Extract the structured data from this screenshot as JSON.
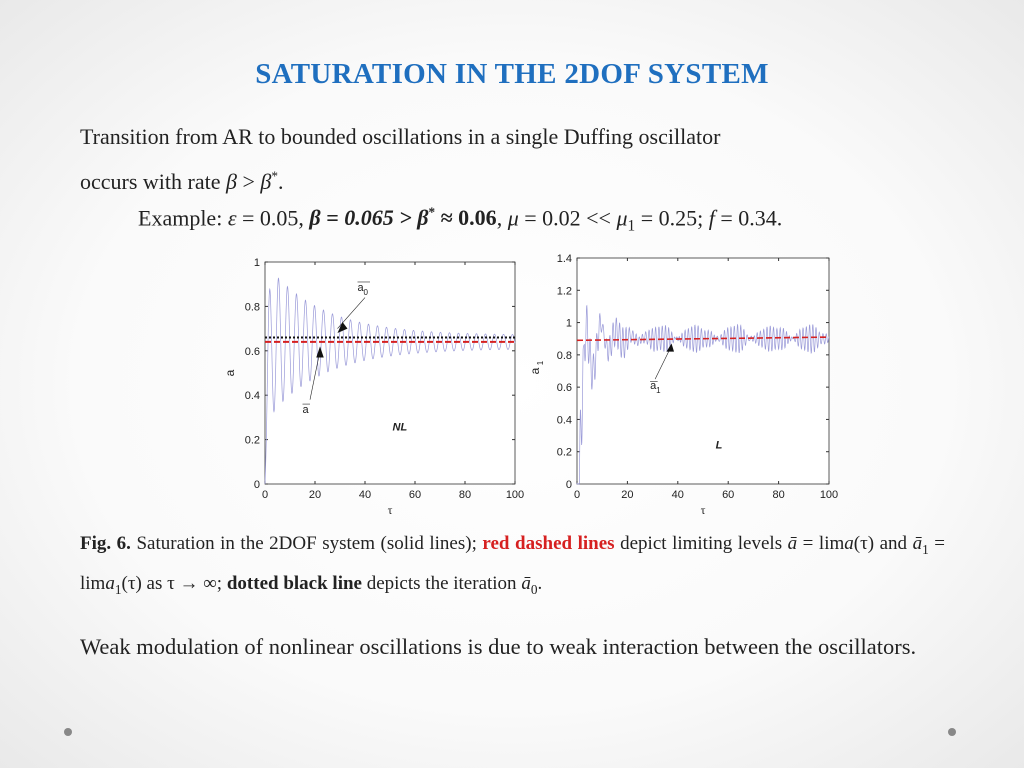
{
  "title": "SATURATION IN THE 2DOF SYSTEM",
  "intro": {
    "line1": "Transition from AR to bounded oscillations in a single Duffing oscillator",
    "line2_pre": "occurs with rate ",
    "beta": "β",
    "gt": " > ",
    "beta_star": "β",
    "star": "*",
    "end": "."
  },
  "example": {
    "label": "Example: ",
    "eps": "ε",
    "eps_val": " = 0.05, ",
    "beta_part": "β = 0.065 > β",
    "star": "*",
    "approx": " ≈ 0.06",
    "comma": ", ",
    "mu": "μ",
    "mu_val": " = 0.02 << ",
    "mu1": "μ",
    "one": "1",
    "mu1_val": " = 0.25; ",
    "f": "f",
    "f_val": " = 0.34."
  },
  "chart_data": [
    {
      "type": "line",
      "xlabel": "τ",
      "ylabel": "a",
      "xlim": [
        0,
        100
      ],
      "ylim": [
        0,
        1
      ],
      "xticks": [
        "0",
        "20",
        "40",
        "60",
        "80",
        "100"
      ],
      "yticks": [
        "0",
        "0.2",
        "0.4",
        "0.6",
        "0.8",
        "1"
      ],
      "panel_label": "NL",
      "annotations": [
        "a0",
        "a"
      ],
      "limit_dotted_black": 0.66,
      "limit_dashed_red": 0.64,
      "signal": {
        "mean": 0.64,
        "start_amplitude": 0.36,
        "end_amplitude": 0.03
      }
    },
    {
      "type": "line",
      "xlabel": "τ",
      "ylabel": "a1",
      "xlim": [
        0,
        100
      ],
      "ylim": [
        0,
        1.4
      ],
      "xticks": [
        "0",
        "20",
        "40",
        "60",
        "80",
        "100"
      ],
      "yticks": [
        "0",
        "0.2",
        "0.4",
        "0.6",
        "0.8",
        "1",
        "1.2",
        "1.4"
      ],
      "panel_label": "L",
      "annotations": [
        "a1"
      ],
      "limit_dashed_red": [
        0.89,
        0.91
      ],
      "signal": {
        "start": 0.0,
        "first_peak": 1.3,
        "final_mean": 0.9
      }
    }
  ],
  "caption": {
    "fig": "Fig. 6.",
    "text1": " Saturation in the 2DOF system (solid lines); ",
    "red": "red dashed lines",
    "text2": " depict limiting levels ",
    "abar": "ā",
    "eq1": " = lim",
    "a": "a",
    "tau_paren": "(τ)",
    "and": " and ",
    "a1bar": "ā",
    "one": "1",
    "eq2": " = lim",
    "a1": "a",
    "one_b": "1",
    "tau_paren2": "(τ)",
    "as": " as ",
    "limit": "τ → ∞;",
    "dotted": " dotted black line",
    "text3": " depicts the iteration ",
    "a0bar": "ā",
    "zero": "0",
    "end": "."
  },
  "outro": "Weak modulation of nonlinear oscillations is due to weak interaction between the oscillators.",
  "colors": {
    "title": "#1f6fbf",
    "red": "#d62020",
    "signal": "#9a9ad8"
  }
}
